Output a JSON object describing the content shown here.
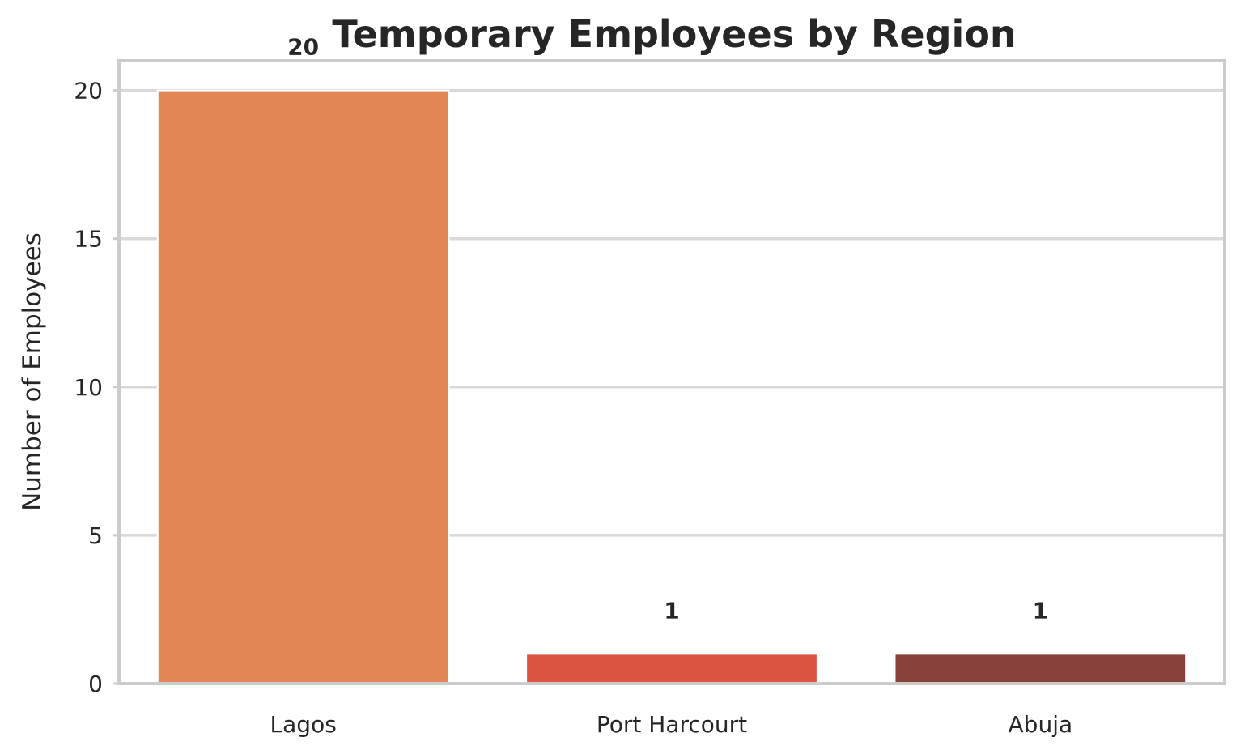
{
  "chart_data": {
    "type": "bar",
    "title": "Temporary Employees by Region",
    "xlabel": "",
    "ylabel": "Number of Employees",
    "categories": [
      "Lagos",
      "Port Harcourt",
      "Abuja"
    ],
    "values": [
      20,
      1,
      1
    ],
    "data_labels": [
      "20",
      "1",
      "1"
    ],
    "colors": [
      "#e38656",
      "#db5442",
      "#87403a"
    ],
    "ylim": [
      0,
      21
    ],
    "yticks": [
      0,
      5,
      10,
      15,
      20
    ],
    "grid": true,
    "legend": "none"
  }
}
